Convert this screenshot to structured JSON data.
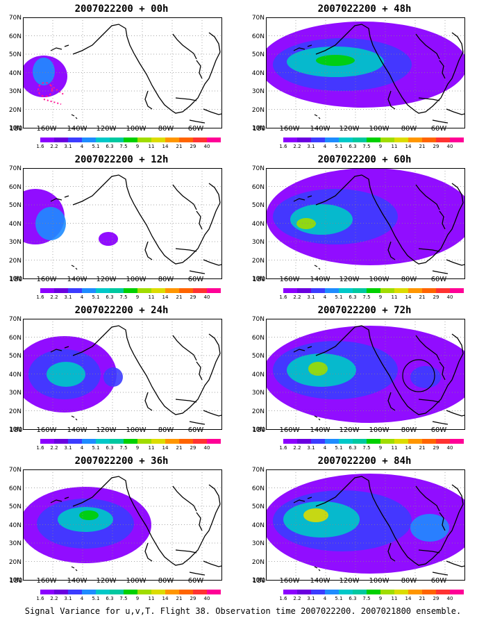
{
  "panels": [
    {
      "title": "2007022200 + 00h"
    },
    {
      "title": "2007022200 + 12h"
    },
    {
      "title": "2007022200 + 24h"
    },
    {
      "title": "2007022200 + 36h"
    },
    {
      "title": "2007022200 + 48h"
    },
    {
      "title": "2007022200 + 60h"
    },
    {
      "title": "2007022200 + 72h"
    },
    {
      "title": "2007022200 + 84h"
    }
  ],
  "lat_labels": [
    "70N",
    "60N",
    "50N",
    "40N",
    "30N",
    "20N",
    "10N"
  ],
  "lon_labels": [
    "180",
    "160W",
    "140W",
    "120W",
    "100W",
    "80W",
    "60W"
  ],
  "colorbar": {
    "labels": [
      "1.6",
      "2.2",
      "3.1",
      "4",
      "5.1",
      "6.3",
      "7.5",
      "9",
      "11",
      "14",
      "21",
      "29",
      "40"
    ],
    "colors": [
      "#8b00ff",
      "#6a00e0",
      "#3c3cff",
      "#1e8cff",
      "#00c8c8",
      "#00c8a0",
      "#00d000",
      "#a0dc00",
      "#dcdc00",
      "#ff9600",
      "#ff6400",
      "#ff3232",
      "#ff0096"
    ]
  },
  "footer": "Signal Variance for u,v,T. Flight 38. Observation time 2007022200. 2007021800 ensemble."
}
